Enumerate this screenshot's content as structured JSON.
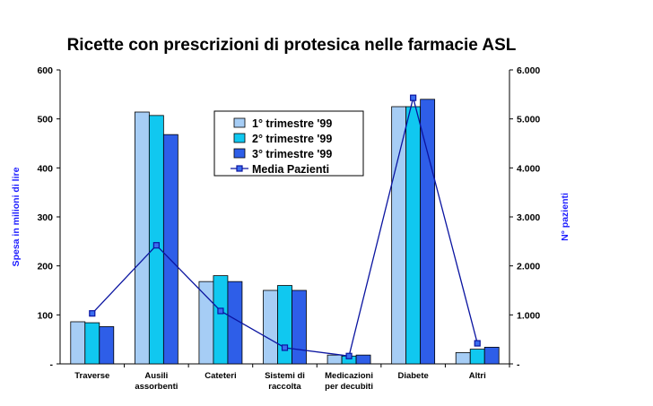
{
  "chart_data": {
    "type": "bar",
    "title": "Ricette con prescrizioni di protesica nelle farmacie ASL",
    "ylabel": "Spesa in milioni di lire",
    "y2label": "N° pazienti",
    "categories": [
      [
        "Traverse"
      ],
      [
        "Ausili",
        "assorbenti"
      ],
      [
        "Cateteri"
      ],
      [
        "Sistemi di",
        "raccolta"
      ],
      [
        "Medicazioni",
        "per decubiti"
      ],
      [
        "Diabete"
      ],
      [
        "Altri"
      ]
    ],
    "ylim": [
      0,
      600
    ],
    "y_ticks": [
      "-",
      "100",
      "200",
      "300",
      "400",
      "500",
      "600"
    ],
    "y2lim": [
      0,
      6000
    ],
    "y2_ticks": [
      "-",
      "1.000",
      "2.000",
      "3.000",
      "4.000",
      "5.000",
      "6.000"
    ],
    "series": [
      {
        "name": "1° trimestre '99",
        "color": "#a6cdf5",
        "values": [
          86,
          514,
          168,
          150,
          18,
          525,
          23
        ]
      },
      {
        "name": "2° trimestre '99",
        "color": "#10c8f0",
        "values": [
          84,
          507,
          180,
          160,
          16,
          525,
          30
        ]
      },
      {
        "name": "3° trimestre '99",
        "color": "#2e5ee8",
        "values": [
          76,
          468,
          168,
          150,
          18,
          540,
          34
        ]
      }
    ],
    "line_series": {
      "name": "Media Pazienti",
      "axis": "right",
      "color": "#0a14a0",
      "values": [
        1030,
        2420,
        1080,
        330,
        160,
        5430,
        420
      ]
    },
    "legend_position": "top-center"
  }
}
